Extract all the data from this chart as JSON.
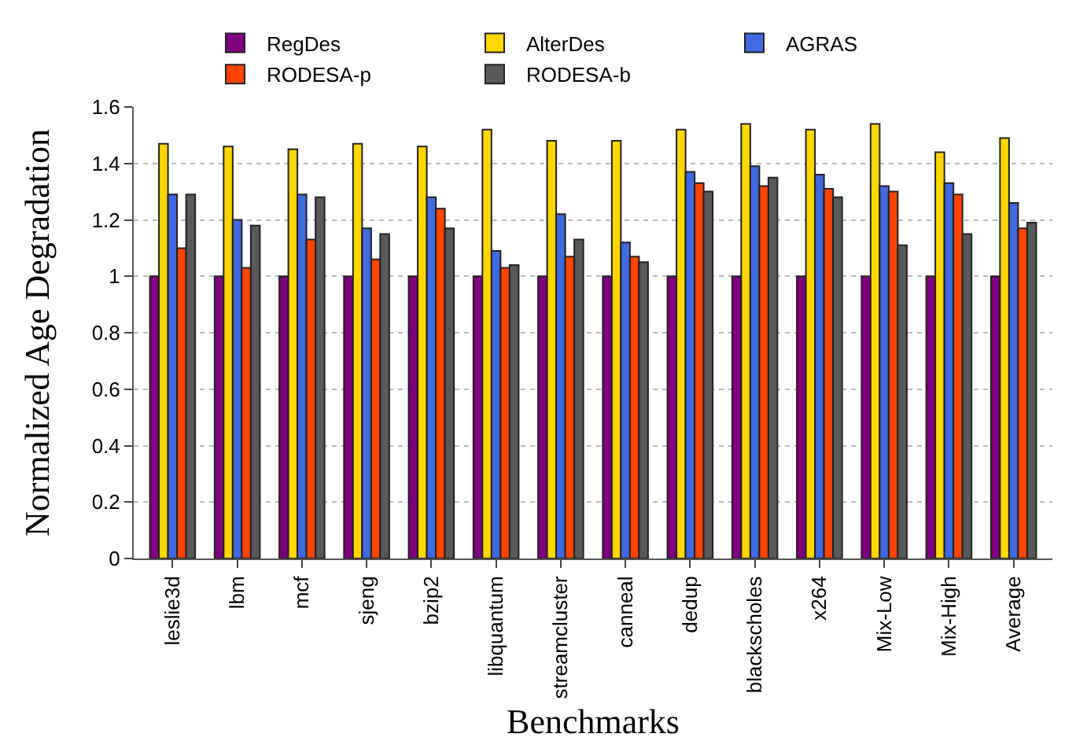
{
  "chart_data": {
    "type": "bar",
    "xlabel": "Benchmarks",
    "ylabel": "Normalized Age Degradation",
    "categories": [
      "leslie3d",
      "lbm",
      "mcf",
      "sjeng",
      "bzip2",
      "libquantum",
      "streamcluster",
      "canneal",
      "dedup",
      "blackscholes",
      "x264",
      "Mix-Low",
      "Mix-High",
      "Average"
    ],
    "series": [
      {
        "name": "RegDes",
        "color": "#800080",
        "values": [
          1,
          1,
          1,
          1,
          1,
          1,
          1,
          1,
          1,
          1,
          1,
          1,
          1,
          1
        ]
      },
      {
        "name": "AlterDes",
        "color": "#ffd700",
        "values": [
          1.47,
          1.46,
          1.45,
          1.47,
          1.46,
          1.52,
          1.48,
          1.48,
          1.52,
          1.54,
          1.52,
          1.54,
          1.44,
          1.49
        ]
      },
      {
        "name": "AGRAS",
        "color": "#4169e1",
        "values": [
          1.29,
          1.2,
          1.29,
          1.17,
          1.28,
          1.09,
          1.22,
          1.12,
          1.37,
          1.39,
          1.36,
          1.32,
          1.33,
          1.26
        ]
      },
      {
        "name": "RODESA-p",
        "color": "#ff4500",
        "values": [
          1.1,
          1.03,
          1.13,
          1.06,
          1.24,
          1.03,
          1.07,
          1.07,
          1.33,
          1.32,
          1.31,
          1.3,
          1.29,
          1.17
        ]
      },
      {
        "name": "RODESA-b",
        "color": "#595959",
        "values": [
          1.29,
          1.18,
          1.28,
          1.15,
          1.17,
          1.04,
          1.13,
          1.05,
          1.3,
          1.35,
          1.28,
          1.11,
          1.15,
          1.19
        ]
      }
    ],
    "ylim": [
      0,
      1.6
    ],
    "yticks": [
      0,
      0.2,
      0.4,
      0.6,
      0.8,
      1,
      1.2,
      1.4,
      1.6
    ],
    "grid": "y",
    "legend": "top"
  }
}
